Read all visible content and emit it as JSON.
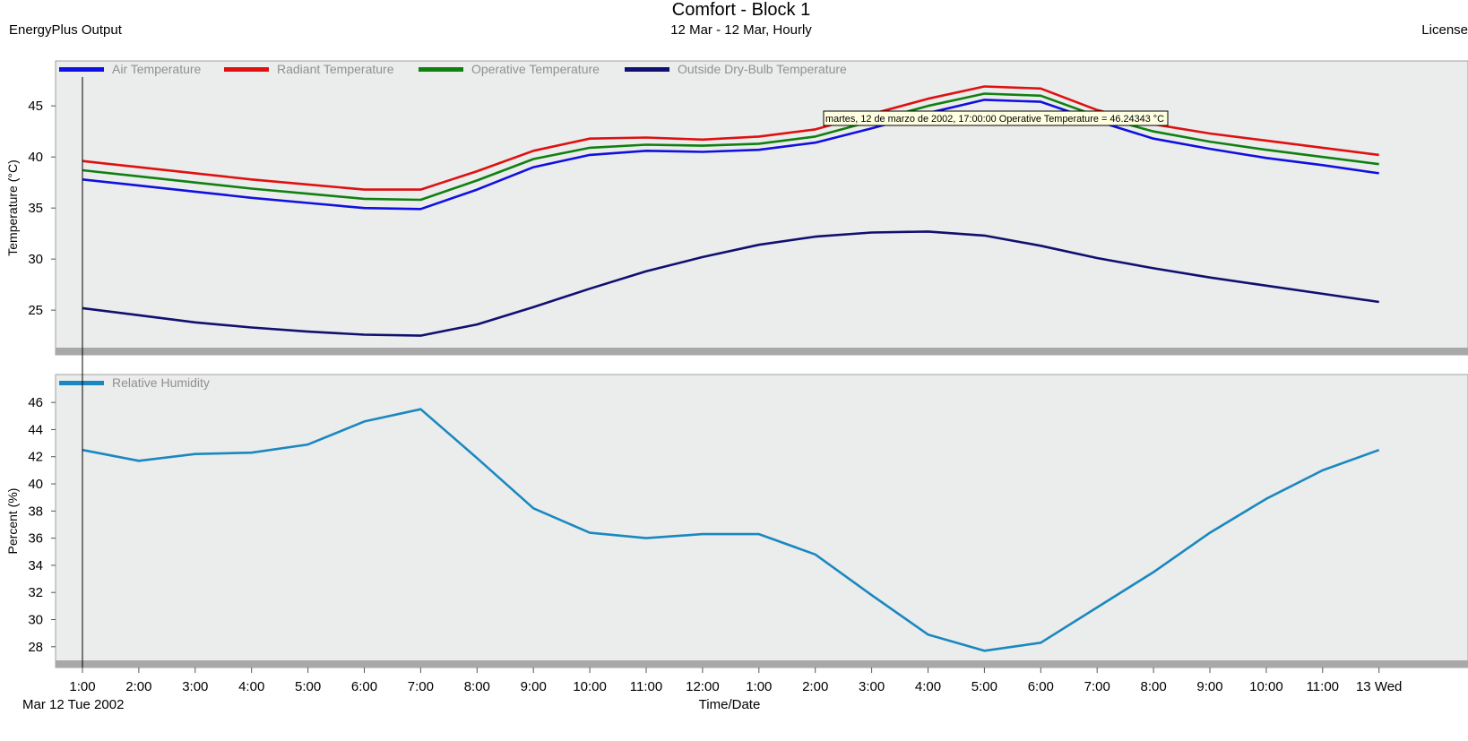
{
  "header": {
    "title": "Comfort - Block 1",
    "subtitle": "12 Mar - 12 Mar, Hourly",
    "left_label": "EnergyPlus Output",
    "right_label": "License"
  },
  "tooltip": {
    "text": "martes, 12 de marzo de 2002, 17:00:00  Operative Temperature = 46.24343 °C"
  },
  "chart_data": [
    {
      "type": "line",
      "ylabel": "Temperature (°C)",
      "ylim": [
        20.8,
        48
      ],
      "yticks": [
        25,
        30,
        35,
        40,
        45
      ],
      "grid": false,
      "legend": "top-left",
      "x": [
        "1:00",
        "2:00",
        "3:00",
        "4:00",
        "5:00",
        "6:00",
        "7:00",
        "8:00",
        "9:00",
        "10:00",
        "11:00",
        "12:00",
        "1:00",
        "2:00",
        "3:00",
        "4:00",
        "5:00",
        "6:00",
        "7:00",
        "8:00",
        "9:00",
        "10:00",
        "11:00",
        "13 Wed"
      ],
      "series": [
        {
          "name": "Air Temperature",
          "color": "#1010e0",
          "values": [
            37.8,
            37.2,
            36.6,
            36.0,
            35.5,
            35.0,
            34.9,
            36.8,
            39.0,
            40.2,
            40.6,
            40.5,
            40.7,
            41.4,
            42.8,
            44.3,
            45.6,
            45.4,
            43.5,
            41.8,
            40.8,
            39.9,
            39.2,
            38.4
          ]
        },
        {
          "name": "Radiant Temperature",
          "color": "#e01010",
          "values": [
            39.6,
            39.0,
            38.4,
            37.8,
            37.3,
            36.8,
            36.8,
            38.6,
            40.6,
            41.8,
            41.9,
            41.7,
            42.0,
            42.7,
            44.2,
            45.7,
            46.9,
            46.7,
            44.6,
            43.2,
            42.3,
            41.6,
            40.9,
            40.2
          ]
        },
        {
          "name": "Operative Temperature",
          "color": "#108010",
          "values": [
            38.7,
            38.1,
            37.5,
            36.9,
            36.4,
            35.9,
            35.8,
            37.7,
            39.8,
            40.9,
            41.2,
            41.1,
            41.3,
            42.0,
            43.5,
            45.0,
            46.2,
            46.0,
            44.0,
            42.5,
            41.5,
            40.7,
            40.0,
            39.3
          ]
        },
        {
          "name": "Outside Dry-Bulb Temperature",
          "color": "#101070",
          "values": [
            25.2,
            24.5,
            23.8,
            23.3,
            22.9,
            22.6,
            22.5,
            23.6,
            25.3,
            27.1,
            28.8,
            30.2,
            31.4,
            32.2,
            32.6,
            32.7,
            32.3,
            31.3,
            30.1,
            29.1,
            28.2,
            27.4,
            26.6,
            25.8
          ]
        }
      ]
    },
    {
      "type": "line",
      "ylabel": "Percent (%)",
      "xlabel": "Time/Date",
      "ylim": [
        26.6,
        47
      ],
      "yticks": [
        28,
        30,
        32,
        34,
        36,
        38,
        40,
        42,
        44,
        46
      ],
      "grid": false,
      "legend": "top-left",
      "x": [
        "1:00",
        "2:00",
        "3:00",
        "4:00",
        "5:00",
        "6:00",
        "7:00",
        "8:00",
        "9:00",
        "10:00",
        "11:00",
        "12:00",
        "1:00",
        "2:00",
        "3:00",
        "4:00",
        "5:00",
        "6:00",
        "7:00",
        "8:00",
        "9:00",
        "10:00",
        "11:00",
        "13 Wed"
      ],
      "date_label": "Mar  12 Tue 2002",
      "series": [
        {
          "name": "Relative Humidity",
          "color": "#1a88c0",
          "values": [
            42.5,
            41.7,
            42.2,
            42.3,
            42.9,
            44.6,
            45.5,
            41.9,
            38.2,
            36.4,
            36.0,
            36.3,
            36.3,
            34.8,
            31.8,
            28.9,
            27.7,
            28.3,
            30.9,
            33.5,
            36.4,
            38.9,
            41.0,
            42.5
          ]
        }
      ]
    }
  ]
}
